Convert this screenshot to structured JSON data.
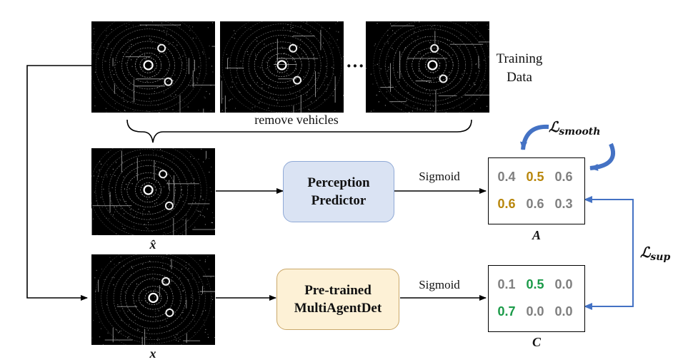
{
  "colors": {
    "gray": "#7f7f7f",
    "gold": "#b8860b",
    "green": "#1a9a48",
    "blue_arrow": "#4472c4",
    "perception_fill": "#dae3f3",
    "perception_border": "#8fa9d6",
    "pretrained_fill": "#fdf1d6",
    "pretrained_border": "#caa86a"
  },
  "labels": {
    "training_data_line1": "Training",
    "training_data_line2": "Data",
    "ellipsis": "···",
    "remove_vehicles": "remove vehicles",
    "x_hat": "x̂",
    "x": "x",
    "sigmoid_top": "Sigmoid",
    "sigmoid_bottom": "Sigmoid"
  },
  "boxes": {
    "perception_line1": "Perception",
    "perception_line2": "Predictor",
    "pretrained_line1": "Pre-trained",
    "pretrained_line2": "MultiAgentDet"
  },
  "matrices": {
    "A": {
      "label": "A",
      "rows": [
        [
          {
            "v": "0.4",
            "c": "gray"
          },
          {
            "v": "0.5",
            "c": "gold"
          },
          {
            "v": "0.6",
            "c": "gray"
          }
        ],
        [
          {
            "v": "0.6",
            "c": "gold"
          },
          {
            "v": "0.6",
            "c": "gray"
          },
          {
            "v": "0.3",
            "c": "gray"
          }
        ]
      ]
    },
    "C": {
      "label": "C",
      "rows": [
        [
          {
            "v": "0.1",
            "c": "gray"
          },
          {
            "v": "0.5",
            "c": "green"
          },
          {
            "v": "0.0",
            "c": "gray"
          }
        ],
        [
          {
            "v": "0.7",
            "c": "green"
          },
          {
            "v": "0.0",
            "c": "gray"
          },
          {
            "v": "0.0",
            "c": "gray"
          }
        ]
      ]
    }
  },
  "losses": {
    "smooth_main": "ℒ",
    "smooth_sub": "smooth",
    "sup_main": "ℒ",
    "sup_sub": "sup"
  }
}
